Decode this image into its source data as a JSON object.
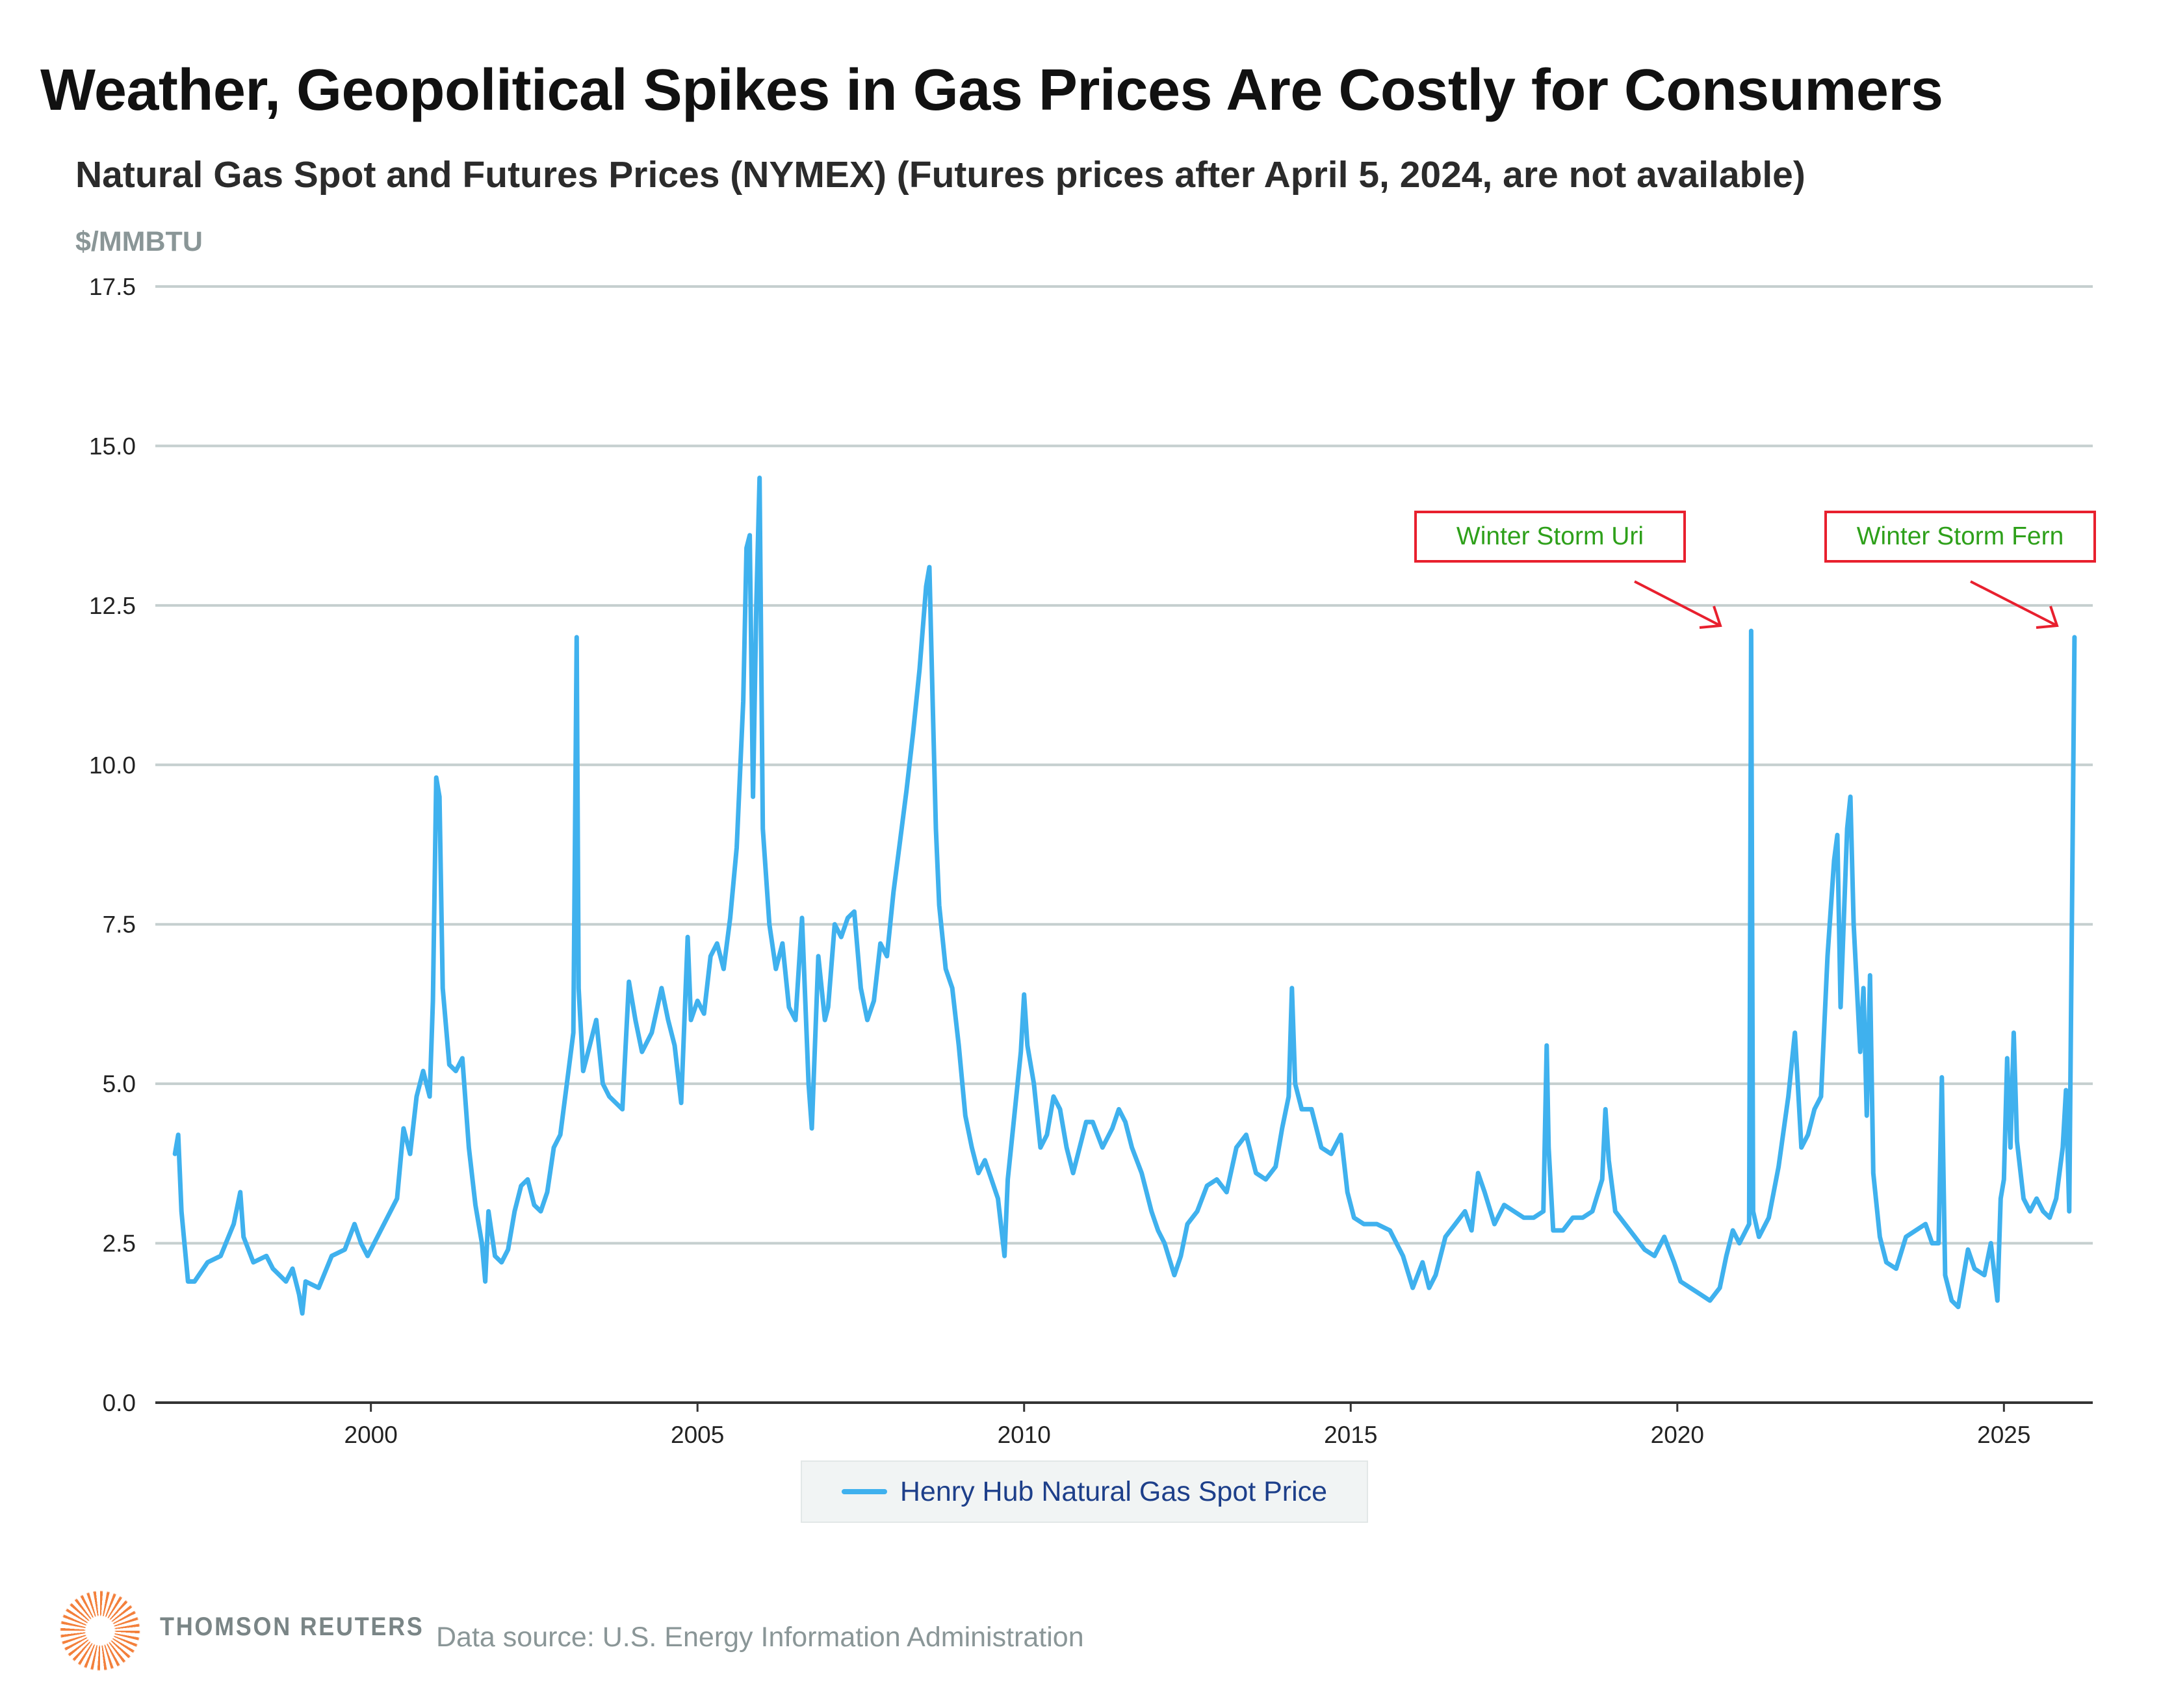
{
  "chart_data": {
    "type": "line",
    "title": "Weather, Geopolitical Spikes in Gas Prices Are Costly for Consumers",
    "subtitle": "Natural Gas Spot and Futures Prices (NYMEX) (Futures prices after April 5, 2024, are not available)",
    "ylabel": "$/MMBTU",
    "xlabel": "",
    "xlim": [
      1996.7,
      2026.36
    ],
    "ylim": [
      0,
      17.5
    ],
    "xticks": [
      2000,
      2005,
      2010,
      2015,
      2020,
      2025
    ],
    "xtick_labels": [
      "2000",
      "2005",
      "2010",
      "2015",
      "2020",
      "2025"
    ],
    "yticks": [
      0,
      2.5,
      5,
      7.5,
      10,
      12.5,
      15,
      17.5
    ],
    "ytick_labels": [
      "0.0",
      "2.5",
      "5.0",
      "7.5",
      "10.0",
      "12.5",
      "15.0",
      "17.5"
    ],
    "grid": "horizontal",
    "legend_placement": "bottom-center",
    "series": [
      {
        "name": "Henry Hub Natural Gas Spot Price",
        "color": "#3fb1ee",
        "points": [
          [
            1997.0,
            3.9
          ],
          [
            1997.05,
            4.2
          ],
          [
            1997.1,
            3.0
          ],
          [
            1997.2,
            1.9
          ],
          [
            1997.3,
            1.9
          ],
          [
            1997.5,
            2.2
          ],
          [
            1997.7,
            2.3
          ],
          [
            1997.9,
            2.8
          ],
          [
            1998.0,
            3.3
          ],
          [
            1998.05,
            2.6
          ],
          [
            1998.2,
            2.2
          ],
          [
            1998.4,
            2.3
          ],
          [
            1998.5,
            2.1
          ],
          [
            1998.7,
            1.9
          ],
          [
            1998.8,
            2.1
          ],
          [
            1998.9,
            1.7
          ],
          [
            1998.95,
            1.4
          ],
          [
            1999.0,
            1.9
          ],
          [
            1999.2,
            1.8
          ],
          [
            1999.4,
            2.3
          ],
          [
            1999.6,
            2.4
          ],
          [
            1999.75,
            2.8
          ],
          [
            1999.85,
            2.5
          ],
          [
            1999.95,
            2.3
          ],
          [
            2000.0,
            2.4
          ],
          [
            2000.2,
            2.8
          ],
          [
            2000.4,
            3.2
          ],
          [
            2000.5,
            4.3
          ],
          [
            2000.6,
            3.9
          ],
          [
            2000.7,
            4.8
          ],
          [
            2000.8,
            5.2
          ],
          [
            2000.9,
            4.8
          ],
          [
            2000.95,
            6.3
          ],
          [
            2001.0,
            9.8
          ],
          [
            2001.05,
            9.5
          ],
          [
            2001.1,
            6.5
          ],
          [
            2001.2,
            5.3
          ],
          [
            2001.3,
            5.2
          ],
          [
            2001.4,
            5.4
          ],
          [
            2001.5,
            4.0
          ],
          [
            2001.6,
            3.1
          ],
          [
            2001.7,
            2.5
          ],
          [
            2001.75,
            1.9
          ],
          [
            2001.8,
            3.0
          ],
          [
            2001.9,
            2.3
          ],
          [
            2002.0,
            2.2
          ],
          [
            2002.1,
            2.4
          ],
          [
            2002.2,
            3.0
          ],
          [
            2002.3,
            3.4
          ],
          [
            2002.4,
            3.5
          ],
          [
            2002.5,
            3.1
          ],
          [
            2002.6,
            3.0
          ],
          [
            2002.7,
            3.3
          ],
          [
            2002.8,
            4.0
          ],
          [
            2002.9,
            4.2
          ],
          [
            2003.0,
            5.0
          ],
          [
            2003.1,
            5.8
          ],
          [
            2003.15,
            12.0
          ],
          [
            2003.18,
            6.5
          ],
          [
            2003.25,
            5.2
          ],
          [
            2003.35,
            5.6
          ],
          [
            2003.45,
            6.0
          ],
          [
            2003.55,
            5.0
          ],
          [
            2003.65,
            4.8
          ],
          [
            2003.75,
            4.7
          ],
          [
            2003.85,
            4.6
          ],
          [
            2003.95,
            6.6
          ],
          [
            2004.05,
            6.0
          ],
          [
            2004.15,
            5.5
          ],
          [
            2004.3,
            5.8
          ],
          [
            2004.45,
            6.5
          ],
          [
            2004.55,
            6.0
          ],
          [
            2004.65,
            5.6
          ],
          [
            2004.75,
            4.7
          ],
          [
            2004.85,
            7.3
          ],
          [
            2004.9,
            6.0
          ],
          [
            2005.0,
            6.3
          ],
          [
            2005.1,
            6.1
          ],
          [
            2005.2,
            7.0
          ],
          [
            2005.3,
            7.2
          ],
          [
            2005.4,
            6.8
          ],
          [
            2005.5,
            7.6
          ],
          [
            2005.6,
            8.7
          ],
          [
            2005.7,
            11.0
          ],
          [
            2005.75,
            13.4
          ],
          [
            2005.8,
            13.6
          ],
          [
            2005.85,
            9.5
          ],
          [
            2005.9,
            12.5
          ],
          [
            2005.95,
            14.5
          ],
          [
            2006.0,
            9.0
          ],
          [
            2006.1,
            7.5
          ],
          [
            2006.2,
            6.8
          ],
          [
            2006.3,
            7.2
          ],
          [
            2006.4,
            6.2
          ],
          [
            2006.5,
            6.0
          ],
          [
            2006.6,
            7.6
          ],
          [
            2006.7,
            5.0
          ],
          [
            2006.75,
            4.3
          ],
          [
            2006.85,
            7.0
          ],
          [
            2006.95,
            6.0
          ],
          [
            2007.0,
            6.2
          ],
          [
            2007.1,
            7.5
          ],
          [
            2007.2,
            7.3
          ],
          [
            2007.3,
            7.6
          ],
          [
            2007.4,
            7.7
          ],
          [
            2007.5,
            6.5
          ],
          [
            2007.6,
            6.0
          ],
          [
            2007.7,
            6.3
          ],
          [
            2007.8,
            7.2
          ],
          [
            2007.9,
            7.0
          ],
          [
            2008.0,
            8.0
          ],
          [
            2008.1,
            8.8
          ],
          [
            2008.2,
            9.6
          ],
          [
            2008.3,
            10.5
          ],
          [
            2008.4,
            11.5
          ],
          [
            2008.5,
            12.8
          ],
          [
            2008.55,
            13.1
          ],
          [
            2008.6,
            11.0
          ],
          [
            2008.65,
            9.0
          ],
          [
            2008.7,
            7.8
          ],
          [
            2008.8,
            6.8
          ],
          [
            2008.9,
            6.5
          ],
          [
            2009.0,
            5.6
          ],
          [
            2009.1,
            4.5
          ],
          [
            2009.2,
            4.0
          ],
          [
            2009.3,
            3.6
          ],
          [
            2009.4,
            3.8
          ],
          [
            2009.5,
            3.5
          ],
          [
            2009.6,
            3.2
          ],
          [
            2009.7,
            2.3
          ],
          [
            2009.75,
            3.5
          ],
          [
            2009.85,
            4.5
          ],
          [
            2009.95,
            5.5
          ],
          [
            2010.0,
            6.4
          ],
          [
            2010.05,
            5.6
          ],
          [
            2010.15,
            5.0
          ],
          [
            2010.25,
            4.0
          ],
          [
            2010.35,
            4.2
          ],
          [
            2010.45,
            4.8
          ],
          [
            2010.55,
            4.6
          ],
          [
            2010.65,
            4.0
          ],
          [
            2010.75,
            3.6
          ],
          [
            2010.85,
            4.0
          ],
          [
            2010.95,
            4.4
          ],
          [
            2011.05,
            4.4
          ],
          [
            2011.2,
            4.0
          ],
          [
            2011.35,
            4.3
          ],
          [
            2011.45,
            4.6
          ],
          [
            2011.55,
            4.4
          ],
          [
            2011.65,
            4.0
          ],
          [
            2011.8,
            3.6
          ],
          [
            2011.95,
            3.0
          ],
          [
            2012.05,
            2.7
          ],
          [
            2012.15,
            2.5
          ],
          [
            2012.3,
            2.0
          ],
          [
            2012.4,
            2.3
          ],
          [
            2012.5,
            2.8
          ],
          [
            2012.65,
            3.0
          ],
          [
            2012.8,
            3.4
          ],
          [
            2012.95,
            3.5
          ],
          [
            2013.1,
            3.3
          ],
          [
            2013.25,
            4.0
          ],
          [
            2013.4,
            4.2
          ],
          [
            2013.55,
            3.6
          ],
          [
            2013.7,
            3.5
          ],
          [
            2013.85,
            3.7
          ],
          [
            2013.95,
            4.3
          ],
          [
            2014.05,
            4.8
          ],
          [
            2014.1,
            6.5
          ],
          [
            2014.15,
            5.0
          ],
          [
            2014.25,
            4.6
          ],
          [
            2014.4,
            4.6
          ],
          [
            2014.55,
            4.0
          ],
          [
            2014.7,
            3.9
          ],
          [
            2014.85,
            4.2
          ],
          [
            2014.95,
            3.3
          ],
          [
            2015.05,
            2.9
          ],
          [
            2015.2,
            2.8
          ],
          [
            2015.4,
            2.8
          ],
          [
            2015.6,
            2.7
          ],
          [
            2015.8,
            2.3
          ],
          [
            2015.95,
            1.8
          ],
          [
            2016.1,
            2.2
          ],
          [
            2016.2,
            1.8
          ],
          [
            2016.3,
            2.0
          ],
          [
            2016.45,
            2.6
          ],
          [
            2016.6,
            2.8
          ],
          [
            2016.75,
            3.0
          ],
          [
            2016.85,
            2.7
          ],
          [
            2016.95,
            3.6
          ],
          [
            2017.05,
            3.3
          ],
          [
            2017.2,
            2.8
          ],
          [
            2017.35,
            3.1
          ],
          [
            2017.5,
            3.0
          ],
          [
            2017.65,
            2.9
          ],
          [
            2017.8,
            2.9
          ],
          [
            2017.95,
            3.0
          ],
          [
            2018.0,
            5.6
          ],
          [
            2018.03,
            4.0
          ],
          [
            2018.1,
            2.7
          ],
          [
            2018.25,
            2.7
          ],
          [
            2018.4,
            2.9
          ],
          [
            2018.55,
            2.9
          ],
          [
            2018.7,
            3.0
          ],
          [
            2018.85,
            3.5
          ],
          [
            2018.9,
            4.6
          ],
          [
            2018.95,
            3.8
          ],
          [
            2019.05,
            3.0
          ],
          [
            2019.2,
            2.8
          ],
          [
            2019.35,
            2.6
          ],
          [
            2019.5,
            2.4
          ],
          [
            2019.65,
            2.3
          ],
          [
            2019.8,
            2.6
          ],
          [
            2019.95,
            2.2
          ],
          [
            2020.05,
            1.9
          ],
          [
            2020.2,
            1.8
          ],
          [
            2020.35,
            1.7
          ],
          [
            2020.5,
            1.6
          ],
          [
            2020.65,
            1.8
          ],
          [
            2020.75,
            2.3
          ],
          [
            2020.85,
            2.7
          ],
          [
            2020.95,
            2.5
          ],
          [
            2021.05,
            2.7
          ],
          [
            2021.1,
            2.8
          ],
          [
            2021.13,
            12.1
          ],
          [
            2021.16,
            3.0
          ],
          [
            2021.25,
            2.6
          ],
          [
            2021.4,
            2.9
          ],
          [
            2021.55,
            3.7
          ],
          [
            2021.7,
            4.8
          ],
          [
            2021.8,
            5.8
          ],
          [
            2021.9,
            4.0
          ],
          [
            2022.0,
            4.2
          ],
          [
            2022.1,
            4.6
          ],
          [
            2022.2,
            4.8
          ],
          [
            2022.3,
            7.0
          ],
          [
            2022.4,
            8.5
          ],
          [
            2022.45,
            8.9
          ],
          [
            2022.5,
            6.2
          ],
          [
            2022.6,
            9.0
          ],
          [
            2022.65,
            9.5
          ],
          [
            2022.7,
            7.5
          ],
          [
            2022.8,
            5.5
          ],
          [
            2022.85,
            6.5
          ],
          [
            2022.9,
            4.5
          ],
          [
            2022.95,
            6.7
          ],
          [
            2023.0,
            3.6
          ],
          [
            2023.1,
            2.6
          ],
          [
            2023.2,
            2.2
          ],
          [
            2023.35,
            2.1
          ],
          [
            2023.5,
            2.6
          ],
          [
            2023.65,
            2.7
          ],
          [
            2023.8,
            2.8
          ],
          [
            2023.9,
            2.5
          ],
          [
            2024.0,
            2.5
          ],
          [
            2024.05,
            5.1
          ],
          [
            2024.1,
            2.0
          ],
          [
            2024.2,
            1.6
          ],
          [
            2024.3,
            1.5
          ],
          [
            2024.45,
            2.4
          ],
          [
            2024.55,
            2.1
          ],
          [
            2024.7,
            2.0
          ],
          [
            2024.8,
            2.5
          ],
          [
            2024.9,
            1.6
          ],
          [
            2024.95,
            3.2
          ],
          [
            2025.0,
            3.5
          ],
          [
            2025.05,
            5.4
          ],
          [
            2025.1,
            4.0
          ],
          [
            2025.15,
            5.8
          ],
          [
            2025.2,
            4.1
          ],
          [
            2025.3,
            3.2
          ],
          [
            2025.4,
            3.0
          ],
          [
            2025.5,
            3.2
          ],
          [
            2025.6,
            3.0
          ],
          [
            2025.7,
            2.9
          ],
          [
            2025.8,
            3.2
          ],
          [
            2025.9,
            4.0
          ],
          [
            2025.95,
            4.9
          ],
          [
            2026.0,
            3.0
          ],
          [
            2026.08,
            12.0
          ]
        ]
      }
    ],
    "annotations": [
      {
        "text": "Winter Storm Uri",
        "x": 2021.13,
        "y": 12.1
      },
      {
        "text": "Winter Storm Fern",
        "x": 2026.08,
        "y": 12.0
      }
    ],
    "colors": {
      "line": "#3fb1ee",
      "grid": "#c5cfcf",
      "annotation_border": "#e8202e",
      "annotation_text": "#2ea01a"
    }
  },
  "footer": {
    "brand": "THOMSON REUTERS",
    "source": "Data source: U.S. Energy Information Administration"
  }
}
